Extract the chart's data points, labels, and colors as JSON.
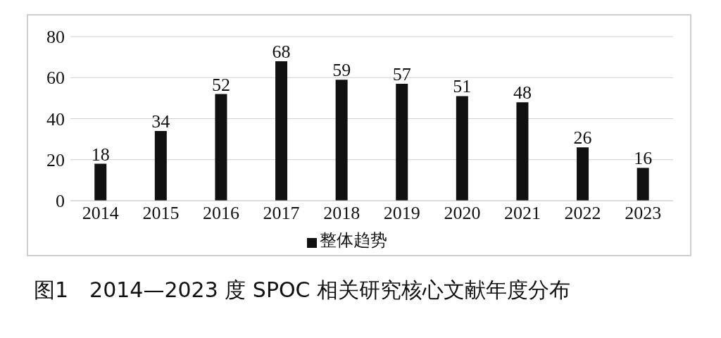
{
  "chart_data": {
    "type": "bar",
    "title": "图1　2014—2023 度 SPOC 相关研究核心文献年度分布",
    "categories": [
      "2014",
      "2015",
      "2016",
      "2017",
      "2018",
      "2019",
      "2020",
      "2021",
      "2022",
      "2023"
    ],
    "series": [
      {
        "name": "整体趋势",
        "color": "#111111",
        "values": [
          18,
          34,
          52,
          68,
          59,
          57,
          51,
          48,
          26,
          16
        ]
      }
    ],
    "ylim": [
      0,
      80
    ],
    "yticks": [
      0,
      20,
      40,
      60,
      80
    ],
    "grid": "y",
    "legend": "bottom",
    "data_labels": true
  }
}
